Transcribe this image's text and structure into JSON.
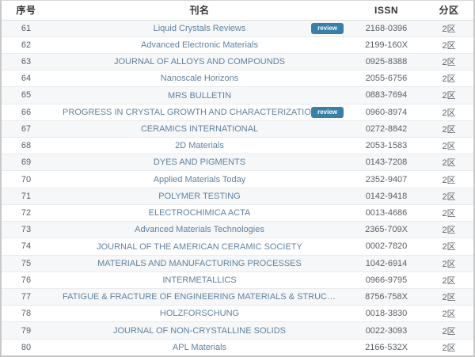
{
  "table": {
    "headers": {
      "index": "序号",
      "name": "刊名",
      "issn": "ISSN",
      "zone": "分区"
    },
    "rows": [
      {
        "index": "61",
        "name": "Liquid Crystals Reviews",
        "badge": "review",
        "issn": "2168-0396",
        "zone": "2区"
      },
      {
        "index": "62",
        "name": "Advanced Electronic Materials",
        "badge": "",
        "issn": "2199-160X",
        "zone": "2区"
      },
      {
        "index": "63",
        "name": "JOURNAL OF ALLOYS AND COMPOUNDS",
        "badge": "",
        "issn": "0925-8388",
        "zone": "2区"
      },
      {
        "index": "64",
        "name": "Nanoscale Horizons",
        "badge": "",
        "issn": "2055-6756",
        "zone": "2区"
      },
      {
        "index": "65",
        "name": "MRS BULLETIN",
        "badge": "",
        "issn": "0883-7694",
        "zone": "2区"
      },
      {
        "index": "66",
        "name": "PROGRESS IN CRYSTAL GROWTH AND CHARACTERIZATION OF MATERIALS",
        "badge": "review",
        "issn": "0960-8974",
        "zone": "2区"
      },
      {
        "index": "67",
        "name": "CERAMICS INTERNATIONAL",
        "badge": "",
        "issn": "0272-8842",
        "zone": "2区"
      },
      {
        "index": "68",
        "name": "2D Materials",
        "badge": "",
        "issn": "2053-1583",
        "zone": "2区"
      },
      {
        "index": "69",
        "name": "DYES AND PIGMENTS",
        "badge": "",
        "issn": "0143-7208",
        "zone": "2区"
      },
      {
        "index": "70",
        "name": "Applied Materials Today",
        "badge": "",
        "issn": "2352-9407",
        "zone": "2区"
      },
      {
        "index": "71",
        "name": "POLYMER TESTING",
        "badge": "",
        "issn": "0142-9418",
        "zone": "2区"
      },
      {
        "index": "72",
        "name": "ELECTROCHIMICA ACTA",
        "badge": "",
        "issn": "0013-4686",
        "zone": "2区"
      },
      {
        "index": "73",
        "name": "Advanced Materials Technologies",
        "badge": "",
        "issn": "2365-709X",
        "zone": "2区"
      },
      {
        "index": "74",
        "name": "JOURNAL OF THE AMERICAN CERAMIC SOCIETY",
        "badge": "",
        "issn": "0002-7820",
        "zone": "2区"
      },
      {
        "index": "75",
        "name": "MATERIALS AND MANUFACTURING PROCESSES",
        "badge": "",
        "issn": "1042-6914",
        "zone": "2区"
      },
      {
        "index": "76",
        "name": "INTERMETALLICS",
        "badge": "",
        "issn": "0966-9795",
        "zone": "2区"
      },
      {
        "index": "77",
        "name": "FATIGUE & FRACTURE OF ENGINEERING MATERIALS & STRUCTURES",
        "badge": "",
        "issn": "8756-758X",
        "zone": "2区"
      },
      {
        "index": "78",
        "name": "HOLZFORSCHUNG",
        "badge": "",
        "issn": "0018-3830",
        "zone": "2区"
      },
      {
        "index": "79",
        "name": "JOURNAL OF NON-CRYSTALLINE SOLIDS",
        "badge": "",
        "issn": "0022-3093",
        "zone": "2区"
      },
      {
        "index": "80",
        "name": "APL Materials",
        "badge": "",
        "issn": "2166-532X",
        "zone": "2区"
      }
    ]
  },
  "colors": {
    "badge_bg": "#3a7fa8",
    "link": "#5f82a1",
    "stripe": "#f6f7f8"
  }
}
